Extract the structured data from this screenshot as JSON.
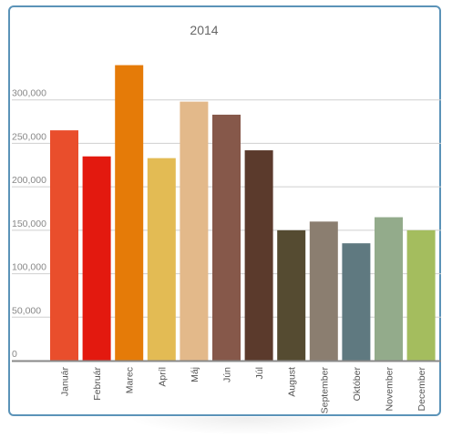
{
  "chart_data": {
    "type": "bar",
    "title": "2014",
    "xlabel": "",
    "ylabel": "",
    "categories": [
      "Január",
      "Február",
      "Marec",
      "Apríl",
      "Máj",
      "Jún",
      "Júl",
      "August",
      "September",
      "Október",
      "November",
      "December"
    ],
    "values": [
      265000,
      235000,
      340000,
      233000,
      298000,
      283000,
      242000,
      150000,
      160000,
      135000,
      165000,
      150000
    ],
    "colors": [
      "#e94e2c",
      "#e3190f",
      "#e57b08",
      "#e3bb54",
      "#e3b98a",
      "#86584a",
      "#5b3a2c",
      "#554b31",
      "#8b7e70",
      "#5f7980",
      "#93ab8b",
      "#a4bd5e"
    ],
    "ylim": [
      0,
      350000
    ],
    "yticks": [
      0,
      50000,
      100000,
      150000,
      200000,
      250000,
      300000
    ],
    "ytick_labels": [
      "0",
      "50,000",
      "100,000",
      "150,000",
      "200,000",
      "250,000",
      "300,000"
    ],
    "grid": true,
    "legend": "none"
  }
}
